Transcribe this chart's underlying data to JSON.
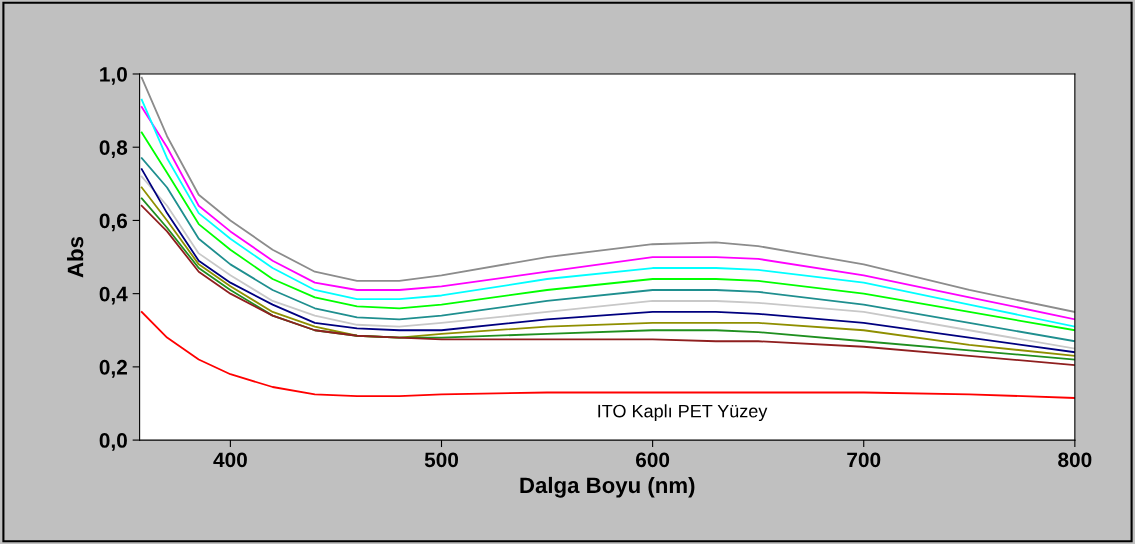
{
  "chart_data": {
    "type": "line",
    "xlabel": "Dalga Boyu (nm)",
    "ylabel": "Abs",
    "x": [
      358,
      370,
      385,
      400,
      420,
      440,
      460,
      480,
      500,
      550,
      600,
      630,
      650,
      700,
      750,
      800
    ],
    "xlim": [
      357,
      800
    ],
    "xticks": [
      400,
      500,
      600,
      700,
      800
    ],
    "ylim": [
      0,
      1
    ],
    "yticks": [
      {
        "value": 0,
        "label": "0,0"
      },
      {
        "value": 0.2,
        "label": "0,2"
      },
      {
        "value": 0.4,
        "label": "0,4"
      },
      {
        "value": 0.6,
        "label": "0,6"
      },
      {
        "value": 0.8,
        "label": "0,8"
      },
      {
        "value": 1,
        "label": "1,0"
      }
    ],
    "grid": false,
    "legend": false,
    "line_style": "solid",
    "marker": "none",
    "annotations": [
      "ITO Kaplı PET Yüzey"
    ],
    "series": [
      {
        "color": "#8c8c8c",
        "values": [
          0.99,
          0.83,
          0.67,
          0.6,
          0.52,
          0.46,
          0.435,
          0.435,
          0.45,
          0.5,
          0.535,
          0.54,
          0.53,
          0.48,
          0.41,
          0.35
        ]
      },
      {
        "color": "#ff00ff",
        "values": [
          0.91,
          0.8,
          0.64,
          0.57,
          0.49,
          0.43,
          0.41,
          0.41,
          0.42,
          0.46,
          0.5,
          0.5,
          0.495,
          0.45,
          0.39,
          0.33
        ]
      },
      {
        "color": "#00ffff",
        "values": [
          0.93,
          0.77,
          0.62,
          0.55,
          0.47,
          0.41,
          0.385,
          0.385,
          0.395,
          0.44,
          0.47,
          0.47,
          0.465,
          0.43,
          0.37,
          0.31
        ]
      },
      {
        "color": "#00ff00",
        "values": [
          0.84,
          0.73,
          0.59,
          0.52,
          0.44,
          0.39,
          0.365,
          0.36,
          0.37,
          0.41,
          0.44,
          0.44,
          0.435,
          0.4,
          0.35,
          0.3
        ]
      },
      {
        "color": "#1f8f8f",
        "values": [
          0.77,
          0.69,
          0.55,
          0.48,
          0.41,
          0.36,
          0.335,
          0.33,
          0.34,
          0.38,
          0.41,
          0.41,
          0.405,
          0.37,
          0.32,
          0.27
        ]
      },
      {
        "color": "#c8c8c8",
        "values": [
          0.72,
          0.64,
          0.51,
          0.45,
          0.38,
          0.34,
          0.315,
          0.31,
          0.32,
          0.35,
          0.38,
          0.38,
          0.375,
          0.35,
          0.3,
          0.25
        ]
      },
      {
        "color": "#00007f",
        "values": [
          0.74,
          0.62,
          0.49,
          0.43,
          0.37,
          0.32,
          0.305,
          0.3,
          0.3,
          0.33,
          0.35,
          0.35,
          0.345,
          0.32,
          0.28,
          0.24
        ]
      },
      {
        "color": "#8f8f00",
        "values": [
          0.69,
          0.6,
          0.48,
          0.42,
          0.35,
          0.31,
          0.285,
          0.28,
          0.29,
          0.31,
          0.32,
          0.32,
          0.32,
          0.3,
          0.26,
          0.23
        ]
      },
      {
        "color": "#1f8f1f",
        "values": [
          0.66,
          0.58,
          0.47,
          0.41,
          0.34,
          0.3,
          0.285,
          0.28,
          0.28,
          0.29,
          0.3,
          0.3,
          0.295,
          0.27,
          0.245,
          0.22
        ]
      },
      {
        "color": "#8f1f1f",
        "values": [
          0.64,
          0.57,
          0.46,
          0.4,
          0.34,
          0.3,
          0.285,
          0.28,
          0.275,
          0.275,
          0.275,
          0.27,
          0.27,
          0.255,
          0.23,
          0.205
        ]
      },
      {
        "color": "#ff0000",
        "values": [
          0.35,
          0.28,
          0.22,
          0.18,
          0.145,
          0.125,
          0.12,
          0.12,
          0.125,
          0.13,
          0.13,
          0.13,
          0.13,
          0.13,
          0.125,
          0.115
        ]
      }
    ]
  }
}
